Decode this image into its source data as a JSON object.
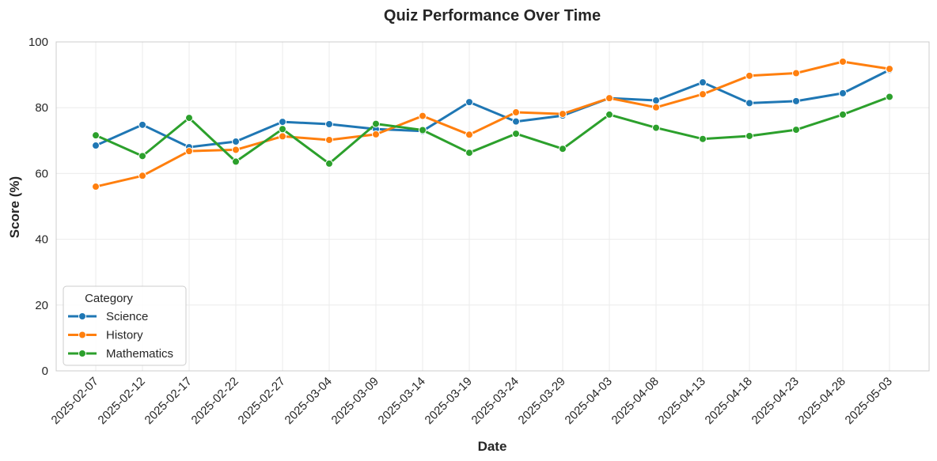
{
  "chart_data": {
    "type": "line",
    "title": "Quiz Performance Over Time",
    "xlabel": "Date",
    "ylabel": "Score (%)",
    "ylim": [
      0,
      100
    ],
    "y_ticks": [
      0,
      20,
      40,
      60,
      80,
      100
    ],
    "grid": true,
    "legend": {
      "title": "Category",
      "placement": "lower-left"
    },
    "x": [
      "2025-02-07",
      "2025-02-12",
      "2025-02-17",
      "2025-02-22",
      "2025-02-27",
      "2025-03-04",
      "2025-03-09",
      "2025-03-14",
      "2025-03-19",
      "2025-03-24",
      "2025-03-29",
      "2025-04-03",
      "2025-04-08",
      "2025-04-13",
      "2025-04-18",
      "2025-04-23",
      "2025-04-28",
      "2025-05-03"
    ],
    "series": [
      {
        "name": "Science",
        "color": "#1f77b4",
        "values": [
          68.5,
          74.8,
          68.0,
          69.7,
          75.7,
          75.0,
          73.5,
          72.9,
          81.7,
          75.8,
          77.6,
          82.9,
          82.2,
          87.7,
          81.4,
          82.0,
          84.4,
          91.5
        ]
      },
      {
        "name": "History",
        "color": "#ff7f0e",
        "values": [
          56.0,
          59.3,
          66.8,
          67.2,
          71.3,
          70.2,
          71.9,
          77.5,
          71.8,
          78.6,
          78.1,
          82.9,
          80.1,
          84.1,
          89.7,
          90.5,
          94.0,
          91.8
        ]
      },
      {
        "name": "Mathematics",
        "color": "#2ca02c",
        "values": [
          71.6,
          65.3,
          76.9,
          63.6,
          73.5,
          63.0,
          75.1,
          73.2,
          66.3,
          72.1,
          67.5,
          77.9,
          73.9,
          70.5,
          71.4,
          73.3,
          77.9,
          83.3
        ]
      }
    ]
  }
}
